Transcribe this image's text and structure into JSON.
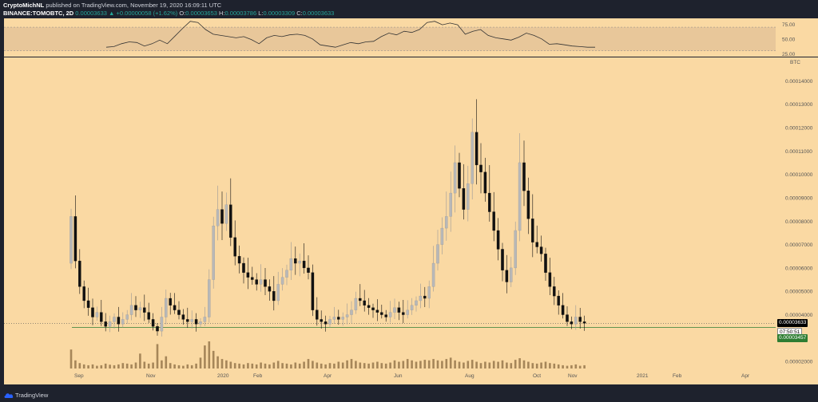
{
  "header": {
    "line1": {
      "author": "CryptoMichNL",
      "text": " published on TradingView.com, November 19, 2020 16:09:11 UTC"
    },
    "line2": {
      "symbol": "BINANCE:TOMOBTC, 2D",
      "last": "0.00003633",
      "change": "+0.00000058 (+1.62%)",
      "o_label": "O:",
      "o_value": "0.00003653",
      "h_label": "H:",
      "h_value": "0.00003786",
      "l_label": "L:",
      "l_value": "0.00003309",
      "c_label": "C:",
      "c_value": "0.00003633"
    }
  },
  "price_axis": {
    "unit": "BTC",
    "ticks": [
      "0.00014000",
      "0.00013000",
      "0.00012000",
      "0.00011000",
      "0.00010000",
      "0.00009000",
      "0.00008000",
      "0.00007000",
      "0.00006000",
      "0.00005000",
      "0.00004000",
      "0.00002000"
    ],
    "last_price": "0.00003633",
    "countdown": "07:50:51",
    "line_price": "0.00003457"
  },
  "rsi_axis": {
    "ticks": [
      "75.00",
      "50.00",
      "25.00"
    ]
  },
  "time_axis": {
    "ticks": [
      "Sep",
      "Nov",
      "2020",
      "Feb",
      "Apr",
      "Jun",
      "Aug",
      "Oct",
      "Nov",
      "2021",
      "Feb",
      "Apr"
    ]
  },
  "footer": {
    "brand": "TradingView"
  },
  "chart_data": {
    "type": "candlestick",
    "unit": "BTC",
    "ylim": [
      1.7e-05,
      0.00015
    ],
    "rsi_ylim": [
      20,
      85
    ],
    "rsi_levels": [
      70,
      30
    ],
    "horizontal_line": 3.457e-05,
    "last_price_line": 3.633e-05,
    "colors": {
      "up": "#b8b8b8",
      "down": "#111111",
      "volume": "#8a6a40",
      "rsi": "#333333",
      "pane": "#fad9a3"
    },
    "closes": [
      8.2e-05,
      6.3e-05,
      5.2e-05,
      4.6e-05,
      4.3e-05,
      3.9e-05,
      4.1e-05,
      3.7e-05,
      3.5e-05,
      3.7e-05,
      3.9e-05,
      3.6e-05,
      3.8e-05,
      4e-05,
      4.4e-05,
      4.2e-05,
      4.3e-05,
      4.1e-05,
      3.8e-05,
      3.5e-05,
      3.3e-05,
      3.9e-05,
      4.7e-05,
      4.4e-05,
      4.2e-05,
      4e-05,
      3.8e-05,
      3.7e-05,
      3.8e-05,
      3.6e-05,
      3.7e-05,
      3.9e-05,
      5.5e-05,
      7.8e-05,
      8.5e-05,
      7.9e-05,
      8.7e-05,
      7.3e-05,
      6.5e-05,
      6.2e-05,
      5.8e-05,
      5.6e-05,
      5.5e-05,
      5.3e-05,
      5.5e-05,
      5.2e-05,
      5e-05,
      4.6e-05,
      5.3e-05,
      5.6e-05,
      5.9e-05,
      6.4e-05,
      6.2e-05,
      6.3e-05,
      6e-05,
      5.8e-05,
      4.2e-05,
      3.8e-05,
      3.7e-05,
      3.6e-05,
      3.8e-05,
      3.9e-05,
      3.8e-05,
      3.9e-05,
      4e-05,
      4.2e-05,
      4.7e-05,
      4.6e-05,
      4.4e-05,
      4.3e-05,
      4.2e-05,
      4.1e-05,
      4e-05,
      3.9e-05,
      4.1e-05,
      4.3e-05,
      4.1e-05,
      4e-05,
      4.2e-05,
      4.4e-05,
      4.6e-05,
      4.8e-05,
      4.7e-05,
      5.2e-05,
      6.2e-05,
      7e-05,
      7.7e-05,
      8.2e-05,
      9.2e-05,
      0.000105,
      9.4e-05,
      8.5e-05,
      9.6e-05,
      0.000118,
      0.000104,
      0.000101,
      9.2e-05,
      8.4e-05,
      7.6e-05,
      6.8e-05,
      5.9e-05,
      5.4e-05,
      6e-05,
      7.6e-05,
      0.000105,
      9.3e-05,
      8.1e-05,
      7.1e-05,
      6.9e-05,
      6.6e-05,
      5.8e-05,
      5.2e-05,
      4.8e-05,
      4.4e-05,
      4e-05,
      3.7e-05,
      3.6e-05,
      3.9e-05,
      3.7e-05,
      3.633e-05
    ],
    "rsi": [
      36,
      37,
      42,
      45,
      44,
      38,
      42,
      48,
      42,
      55,
      68,
      80,
      78,
      66,
      58,
      56,
      54,
      52,
      54,
      49,
      42,
      52,
      56,
      54,
      57,
      58,
      56,
      50,
      40,
      38,
      36,
      40,
      44,
      42,
      45,
      46,
      54,
      60,
      57,
      63,
      61,
      66,
      78,
      80,
      74,
      77,
      74,
      58,
      63,
      66,
      56,
      52,
      50,
      48,
      53,
      60,
      56,
      50,
      41,
      42,
      40,
      38,
      37,
      36,
      36
    ],
    "volume": [
      0.7,
      0.3,
      0.2,
      0.15,
      0.12,
      0.15,
      0.1,
      0.12,
      0.18,
      0.14,
      0.12,
      0.15,
      0.2,
      0.18,
      0.15,
      0.22,
      0.55,
      0.25,
      0.18,
      0.22,
      0.9,
      0.3,
      0.45,
      0.2,
      0.15,
      0.12,
      0.1,
      0.15,
      0.12,
      0.18,
      0.4,
      0.85,
      1.0,
      0.65,
      0.45,
      0.35,
      0.3,
      0.25,
      0.2,
      0.18,
      0.15,
      0.2,
      0.18,
      0.15,
      0.22,
      0.18,
      0.15,
      0.22,
      0.28,
      0.2,
      0.18,
      0.15,
      0.22,
      0.18,
      0.25,
      0.35,
      0.28,
      0.22,
      0.18,
      0.15,
      0.2,
      0.18,
      0.25,
      0.22,
      0.3,
      0.35,
      0.28,
      0.22,
      0.2,
      0.18,
      0.22,
      0.25,
      0.2,
      0.18,
      0.22,
      0.3,
      0.25,
      0.28,
      0.35,
      0.3,
      0.25,
      0.28,
      0.32,
      0.3,
      0.35,
      0.3,
      0.28,
      0.35,
      0.4,
      0.3,
      0.25,
      0.22,
      0.28,
      0.32,
      0.25,
      0.2,
      0.25,
      0.22,
      0.28,
      0.25,
      0.3,
      0.22,
      0.2,
      0.32,
      0.38,
      0.3,
      0.25,
      0.2,
      0.18,
      0.22,
      0.25,
      0.2,
      0.18,
      0.15,
      0.12,
      0.1,
      0.12,
      0.15,
      0.1,
      0.12
    ]
  }
}
